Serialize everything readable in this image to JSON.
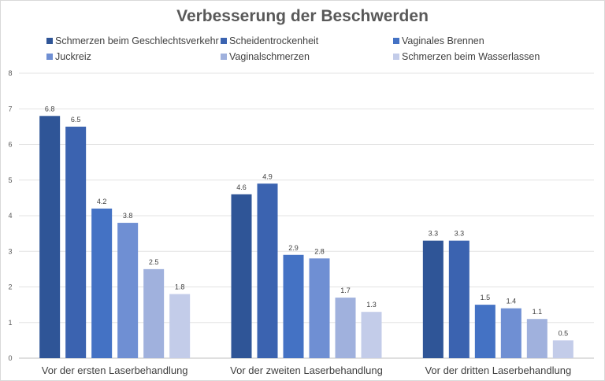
{
  "chart_data": {
    "type": "bar",
    "title": "Verbesserung der Beschwerden",
    "xlabel": "",
    "ylabel": "",
    "ylim": [
      0,
      8
    ],
    "yticks": [
      "0",
      "1",
      "2",
      "3",
      "4",
      "5",
      "6",
      "7",
      "8"
    ],
    "grid": true,
    "legend_position": "top",
    "categories": [
      "Vor der ersten Laserbehandlung",
      "Vor der zweiten Laserbehandlung",
      "Vor der dritten Laserbehandlung"
    ],
    "series": [
      {
        "name": "Schmerzen beim Geschlechtsverkehr",
        "color": "#2f5597",
        "values": [
          6.8,
          4.6,
          3.3
        ],
        "labels": [
          "6.8",
          "4.6",
          "3.3"
        ]
      },
      {
        "name": "Scheidentrockenheit",
        "color": "#3b63b0",
        "values": [
          6.5,
          4.9,
          3.3
        ],
        "labels": [
          "6.5",
          "4.9",
          "3.3"
        ]
      },
      {
        "name": "Vaginales Brennen",
        "color": "#4472c4",
        "values": [
          4.2,
          2.9,
          1.5
        ],
        "labels": [
          "4.2",
          "2.9",
          "1.5"
        ]
      },
      {
        "name": "Juckreiz",
        "color": "#6f8fd3",
        "values": [
          3.8,
          2.8,
          1.4
        ],
        "labels": [
          "3.8",
          "2.8",
          "1.4"
        ]
      },
      {
        "name": "Vaginalschmerzen",
        "color": "#a0b1dd",
        "values": [
          2.5,
          1.7,
          1.1
        ],
        "labels": [
          "2.5",
          "1.7",
          "1.1"
        ]
      },
      {
        "name": "Schmerzen beim Wasserlassen",
        "color": "#c3cce9",
        "values": [
          1.8,
          1.3,
          0.5
        ],
        "labels": [
          "1.8",
          "1.3",
          "0.5"
        ]
      }
    ]
  }
}
